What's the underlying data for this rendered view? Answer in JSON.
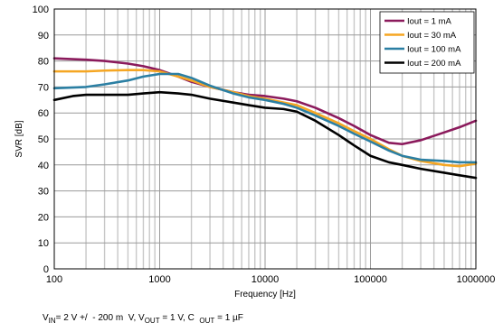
{
  "chart_data": {
    "type": "line",
    "xlabel": "Frequency [Hz]",
    "ylabel": "SVR [dB]",
    "x_scale": "log",
    "xlim": [
      100,
      1000000
    ],
    "ylim": [
      0,
      100
    ],
    "x_ticks": [
      100,
      1000,
      10000,
      100000,
      1000000
    ],
    "x_tick_labels": [
      "100",
      "1000",
      "10000",
      "100000",
      "1000000"
    ],
    "y_ticks": [
      0,
      10,
      20,
      30,
      40,
      50,
      60,
      70,
      80,
      90,
      100
    ],
    "y_tick_labels": [
      "0",
      "10",
      "20",
      "30",
      "40",
      "50",
      "60",
      "70",
      "80",
      "90",
      "100"
    ],
    "grid": true,
    "legend_position": "top-right",
    "series": [
      {
        "name": "Iout = 1 mA",
        "color": "#8b1a5c",
        "points": [
          [
            100,
            81
          ],
          [
            200,
            80.5
          ],
          [
            300,
            80
          ],
          [
            500,
            79
          ],
          [
            700,
            78
          ],
          [
            1000,
            76.5
          ],
          [
            1500,
            74
          ],
          [
            2000,
            72
          ],
          [
            3000,
            70
          ],
          [
            5000,
            68
          ],
          [
            7000,
            67
          ],
          [
            10000,
            66.5
          ],
          [
            15000,
            65.5
          ],
          [
            20000,
            64.5
          ],
          [
            30000,
            62
          ],
          [
            50000,
            58
          ],
          [
            70000,
            55
          ],
          [
            100000,
            51.5
          ],
          [
            150000,
            48.5
          ],
          [
            200000,
            48
          ],
          [
            300000,
            49.5
          ],
          [
            500000,
            52.5
          ],
          [
            700000,
            54.5
          ],
          [
            1000000,
            57
          ]
        ]
      },
      {
        "name": "Iout = 30 mA",
        "color": "#f5a623",
        "points": [
          [
            100,
            76
          ],
          [
            200,
            76
          ],
          [
            300,
            76.3
          ],
          [
            500,
            76.5
          ],
          [
            700,
            76.5
          ],
          [
            1000,
            76
          ],
          [
            1500,
            74
          ],
          [
            2000,
            72.5
          ],
          [
            3000,
            70
          ],
          [
            5000,
            68
          ],
          [
            7000,
            66.5
          ],
          [
            10000,
            65.5
          ],
          [
            15000,
            64
          ],
          [
            20000,
            63
          ],
          [
            30000,
            60
          ],
          [
            50000,
            56
          ],
          [
            70000,
            53
          ],
          [
            100000,
            50
          ],
          [
            150000,
            46
          ],
          [
            200000,
            43.5
          ],
          [
            300000,
            41.5
          ],
          [
            500000,
            40
          ],
          [
            700000,
            39.5
          ],
          [
            1000000,
            40.5
          ]
        ]
      },
      {
        "name": "Iout = 100 mA",
        "color": "#2b7fa3",
        "points": [
          [
            100,
            69.5
          ],
          [
            200,
            70
          ],
          [
            300,
            71
          ],
          [
            500,
            72.5
          ],
          [
            700,
            74
          ],
          [
            1000,
            75
          ],
          [
            1500,
            75
          ],
          [
            2000,
            73.5
          ],
          [
            3000,
            70.5
          ],
          [
            5000,
            67.5
          ],
          [
            7000,
            66
          ],
          [
            10000,
            65
          ],
          [
            15000,
            63.5
          ],
          [
            20000,
            62
          ],
          [
            30000,
            59
          ],
          [
            50000,
            55
          ],
          [
            70000,
            52
          ],
          [
            100000,
            49
          ],
          [
            150000,
            45.5
          ],
          [
            200000,
            43.5
          ],
          [
            300000,
            42
          ],
          [
            500000,
            41.5
          ],
          [
            700000,
            41
          ],
          [
            1000000,
            41
          ]
        ]
      },
      {
        "name": "Iout = 200 mA",
        "color": "#000000",
        "points": [
          [
            100,
            65
          ],
          [
            150,
            66.5
          ],
          [
            200,
            67
          ],
          [
            300,
            67
          ],
          [
            500,
            67
          ],
          [
            700,
            67.5
          ],
          [
            1000,
            68
          ],
          [
            1500,
            67.5
          ],
          [
            2000,
            67
          ],
          [
            3000,
            65.5
          ],
          [
            5000,
            64
          ],
          [
            7000,
            63
          ],
          [
            10000,
            62
          ],
          [
            15000,
            61.5
          ],
          [
            20000,
            60.5
          ],
          [
            30000,
            57
          ],
          [
            50000,
            51.5
          ],
          [
            70000,
            47.5
          ],
          [
            100000,
            43.5
          ],
          [
            150000,
            41
          ],
          [
            200000,
            40
          ],
          [
            300000,
            38.5
          ],
          [
            500000,
            37
          ],
          [
            700000,
            36
          ],
          [
            1000000,
            35
          ]
        ]
      }
    ]
  }
}
